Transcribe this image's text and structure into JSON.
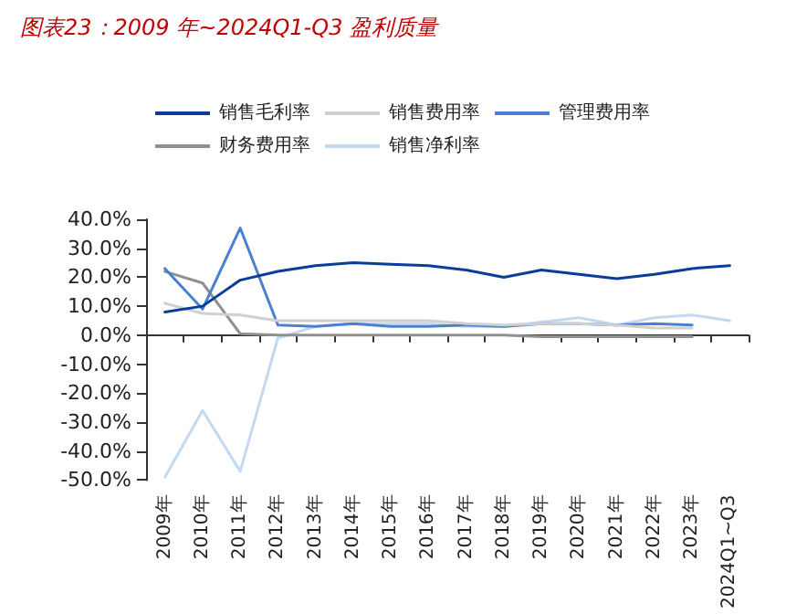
{
  "chart_data": {
    "type": "line",
    "title": "图表23：2009 年~2024Q1-Q3 盈利质量",
    "categories": [
      "2009年",
      "2010年",
      "2011年",
      "2012年",
      "2013年",
      "2014年",
      "2015年",
      "2016年",
      "2017年",
      "2018年",
      "2019年",
      "2020年",
      "2021年",
      "2022年",
      "2023年",
      "2024Q1~Q3"
    ],
    "series": [
      {
        "name": "销售毛利率",
        "color": "#0a3d9a",
        "values": [
          8,
          10,
          19,
          22,
          24,
          25,
          24.5,
          24,
          22.5,
          20,
          22.5,
          21,
          19.5,
          21,
          23,
          24
        ]
      },
      {
        "name": "销售费用率",
        "color": "#d0d0d0",
        "values": [
          11,
          7.5,
          7,
          5,
          5,
          5,
          5,
          5,
          4,
          3.5,
          4,
          4,
          3.5,
          2.5,
          2.5,
          null
        ]
      },
      {
        "name": "管理费用率",
        "color": "#4a80d0",
        "values": [
          23,
          9,
          37,
          3.5,
          3,
          4,
          3,
          3,
          3.5,
          3,
          4,
          4,
          3.5,
          4,
          3.5,
          null
        ]
      },
      {
        "name": "财务费用率",
        "color": "#909090",
        "values": [
          22,
          18,
          0.5,
          0,
          0,
          0,
          0,
          0,
          0,
          0,
          -0.5,
          -0.5,
          -0.5,
          -0.5,
          -0.5,
          null
        ]
      },
      {
        "name": "销售净利率",
        "color": "#c5d8f0",
        "values": [
          -49,
          -26,
          -47,
          -1,
          3,
          4,
          4,
          4,
          3,
          3,
          4.5,
          6,
          3.5,
          6,
          7,
          5
        ]
      }
    ],
    "ylim": [
      -50,
      40
    ],
    "yticks": [
      {
        "value": -50,
        "label": "-50.0%"
      },
      {
        "value": -40,
        "label": "-40.0%"
      },
      {
        "value": -30,
        "label": "-30.0%"
      },
      {
        "value": -20,
        "label": "-20.0%"
      },
      {
        "value": -10,
        "label": "-10.0%"
      },
      {
        "value": 0,
        "label": "0.0%"
      },
      {
        "value": 10,
        "label": "10.0%"
      },
      {
        "value": 20,
        "label": "20.0%"
      },
      {
        "value": 30,
        "label": "30.0%"
      },
      {
        "value": 40,
        "label": "40.0%"
      }
    ],
    "legend": "top",
    "marker": "none",
    "line_style": "solid"
  }
}
